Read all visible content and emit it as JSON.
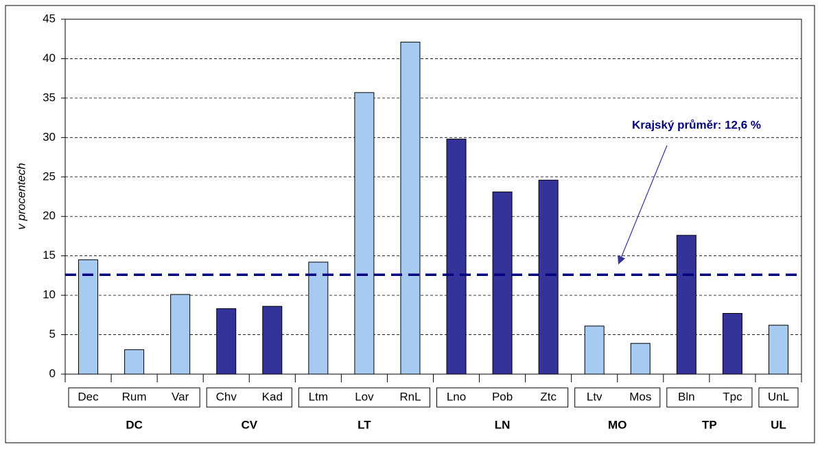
{
  "chart_data": {
    "type": "bar",
    "y_label": "v procentech",
    "ylim": [
      0,
      45
    ],
    "yticks": [
      0,
      5,
      10,
      15,
      20,
      25,
      30,
      35,
      40,
      45
    ],
    "grid": true,
    "groups": [
      {
        "name": "DC",
        "color": "#a6caf0",
        "categories": [
          "Dec",
          "Rum",
          "Var"
        ],
        "values": [
          14.5,
          3.1,
          10.1
        ]
      },
      {
        "name": "CV",
        "color": "#333399",
        "categories": [
          "Chv",
          "Kad"
        ],
        "values": [
          8.3,
          8.6
        ]
      },
      {
        "name": "LT",
        "color": "#a6caf0",
        "categories": [
          "Ltm",
          "Lov",
          "RnL"
        ],
        "values": [
          14.2,
          35.7,
          42.1
        ]
      },
      {
        "name": "LN",
        "color": "#333399",
        "categories": [
          "Lno",
          "Pob",
          "Ztc"
        ],
        "values": [
          29.8,
          23.1,
          24.6
        ]
      },
      {
        "name": "MO",
        "color": "#a6caf0",
        "categories": [
          "Ltv",
          "Mos"
        ],
        "values": [
          6.1,
          3.9
        ]
      },
      {
        "name": "TP",
        "color": "#333399",
        "categories": [
          "Bln",
          "Tpc"
        ],
        "values": [
          17.6,
          7.7
        ]
      },
      {
        "name": "UL",
        "color": "#a6caf0",
        "categories": [
          "UnL"
        ],
        "values": [
          6.2
        ]
      }
    ],
    "reference": {
      "value": 12.6,
      "label": "Krajský průměr: 12,6 %",
      "color": "#000080"
    }
  }
}
